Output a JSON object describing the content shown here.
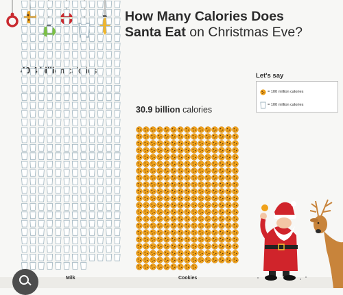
{
  "chart_data": {
    "type": "bar",
    "title_bold_1": "How Many Calories Does",
    "title_bold_2": "Santa Eat",
    "title_rest": "on Christmas Eve?",
    "categories": [
      "Milk",
      "Cookies"
    ],
    "values_billion_calories": [
      40.4,
      30.9
    ],
    "value_labels": [
      {
        "number": "40.4 billion",
        "unit": "calories"
      },
      {
        "number": "30.9 billion",
        "unit": "calories"
      }
    ],
    "unit_per_icon_million_calories": 100,
    "icons_per_row": [
      12,
      15
    ],
    "legend_title": "Let's say",
    "legend": [
      {
        "icon": "cookie-icon",
        "text": "= 100 million calories"
      },
      {
        "icon": "milk-glass-icon",
        "text": "= 100 million calories"
      }
    ]
  },
  "colors": {
    "cookie": "#f0a21a",
    "cookie_dark": "#c7790c",
    "chip": "#5b3413",
    "glass_outline": "#9fb4bf",
    "milk": "#ffffff",
    "santa_red": "#d0242b",
    "reindeer": "#c8843b"
  }
}
